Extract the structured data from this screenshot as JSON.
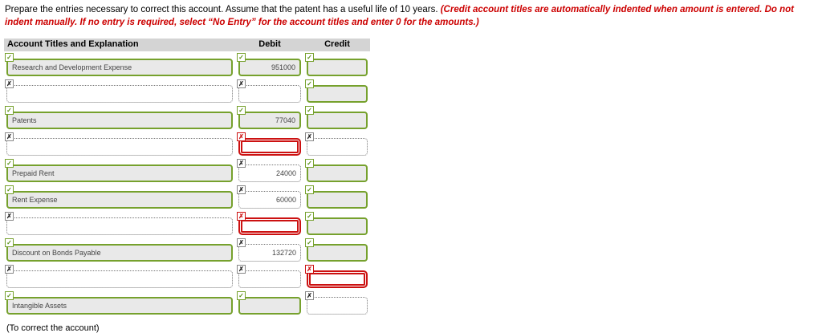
{
  "instructions": {
    "prompt": "Prepare the entries necessary to correct this account. Assume that the patent has a useful life of 10 years. ",
    "warning": "(Credit account titles are automatically indented when amount is entered. Do not indent manually. If no entry is required, select “No Entry” for the account titles and enter 0 for the amounts.)"
  },
  "colors": {
    "correct_border": "#76a12d",
    "error_border": "#cc1111",
    "warning_text": "#cc0000",
    "header_background": "#d4d4d4",
    "field_fill": "#e9e9e9"
  },
  "icons": {
    "correct": "✓",
    "empty": "✗",
    "error": "✗"
  },
  "table": {
    "headers": {
      "account": "Account Titles and Explanation",
      "debit": "Debit",
      "credit": "Credit"
    },
    "rows": [
      {
        "account": {
          "value": "Research and Development Expense",
          "state": "correct"
        },
        "debit": {
          "value": "951000",
          "state": "correct"
        },
        "credit": {
          "value": "",
          "state": "correct"
        }
      },
      {
        "account": {
          "value": "",
          "state": "empty"
        },
        "debit": {
          "value": "",
          "state": "empty"
        },
        "credit": {
          "value": "",
          "state": "correct"
        }
      },
      {
        "account": {
          "value": "Patents",
          "state": "correct"
        },
        "debit": {
          "value": "77040",
          "state": "correct"
        },
        "credit": {
          "value": "",
          "state": "correct"
        }
      },
      {
        "account": {
          "value": "",
          "state": "empty"
        },
        "debit": {
          "value": "",
          "state": "error"
        },
        "credit": {
          "value": "",
          "state": "empty"
        }
      },
      {
        "account": {
          "value": "Prepaid Rent",
          "state": "correct"
        },
        "debit": {
          "value": "24000",
          "state": "empty"
        },
        "credit": {
          "value": "",
          "state": "correct"
        }
      },
      {
        "account": {
          "value": "Rent Expense",
          "state": "correct"
        },
        "debit": {
          "value": "60000",
          "state": "empty"
        },
        "credit": {
          "value": "",
          "state": "correct"
        }
      },
      {
        "account": {
          "value": "",
          "state": "empty"
        },
        "debit": {
          "value": "",
          "state": "error"
        },
        "credit": {
          "value": "",
          "state": "correct"
        }
      },
      {
        "account": {
          "value": "Discount on Bonds Payable",
          "state": "correct"
        },
        "debit": {
          "value": "132720",
          "state": "empty"
        },
        "credit": {
          "value": "",
          "state": "correct"
        }
      },
      {
        "account": {
          "value": "",
          "state": "empty"
        },
        "debit": {
          "value": "",
          "state": "empty"
        },
        "credit": {
          "value": "",
          "state": "error"
        }
      },
      {
        "account": {
          "value": "Intangible Assets",
          "state": "correct"
        },
        "debit": {
          "value": "",
          "state": "correct"
        },
        "credit": {
          "value": "",
          "state": "empty"
        }
      }
    ]
  },
  "footer": "(To correct the account)"
}
